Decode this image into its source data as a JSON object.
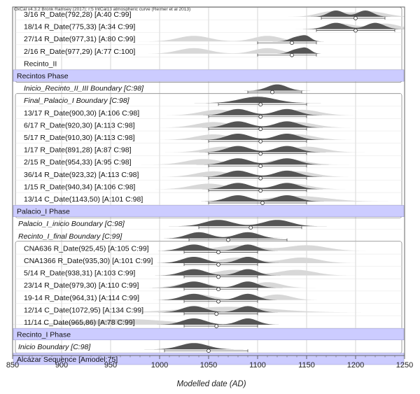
{
  "header": "OxCal v4.3.2 Bronk Ramsey (2017); r:5 IntCal13 atmospheric curve (Reimer et al 2013)",
  "chart_data": {
    "type": "oxcal-multiplot",
    "xlabel": "Modelled date (AD)",
    "xlim": [
      850,
      1250
    ],
    "xticks": [
      850,
      900,
      950,
      1000,
      1050,
      1100,
      1150,
      1200,
      1250
    ],
    "grid": true,
    "rows": [
      {
        "kind": "date",
        "label": "3/16 R_Date(792,28) [A:40 C:99]",
        "style": "normal",
        "prior_modes": [
          [
            1175,
            14
          ],
          [
            1215,
            16
          ]
        ],
        "post_modes": [
          [
            1180,
            8
          ],
          [
            1210,
            8
          ]
        ],
        "mean": 1200,
        "ranges": [
          [
            1165,
            1230
          ]
        ],
        "indent": 1
      },
      {
        "kind": "date",
        "label": "18/14 R_Date(775,33) [A:34 C:99]",
        "style": "normal",
        "prior_modes": [
          [
            1185,
            14
          ],
          [
            1230,
            14
          ]
        ],
        "post_modes": [
          [
            1180,
            10
          ],
          [
            1220,
            9
          ]
        ],
        "mean": 1200,
        "ranges": [
          [
            1160,
            1240
          ]
        ],
        "indent": 1
      },
      {
        "kind": "date",
        "label": "27/14 R_Date(977,31) [A:80 C:99]",
        "style": "normal",
        "prior_modes": [
          [
            1035,
            16
          ],
          [
            1110,
            14
          ]
        ],
        "post_modes": [
          [
            1140,
            7
          ],
          [
            1150,
            5
          ]
        ],
        "mean": 1135,
        "ranges": [
          [
            1100,
            1160
          ]
        ],
        "indent": 1
      },
      {
        "kind": "date",
        "label": "2/16 R_Date(977,29) [A:77 C:100]",
        "style": "normal",
        "prior_modes": [
          [
            1035,
            16
          ],
          [
            1110,
            14
          ]
        ],
        "post_modes": [
          [
            1140,
            7
          ],
          [
            1150,
            5
          ]
        ],
        "mean": 1135,
        "ranges": [
          [
            1100,
            1160
          ]
        ],
        "indent": 1
      },
      {
        "kind": "phase-name",
        "label": "Recinto_II",
        "style": "normal",
        "indent": 1
      },
      {
        "kind": "phase",
        "label": "Recintos Phase"
      },
      {
        "kind": "boundary",
        "label": "Inicio_Recinto_II_III Boundary [C:98]",
        "style": "italic",
        "post_modes": [
          [
            1120,
            10
          ]
        ],
        "mean": 1115,
        "ranges": [
          [
            1090,
            1145
          ]
        ],
        "indent": 1
      },
      {
        "kind": "boundary",
        "label": "Final_Palacio_I Boundary [C:98]",
        "style": "italic",
        "post_modes": [
          [
            1100,
            18
          ]
        ],
        "mean": 1103,
        "ranges": [
          [
            1060,
            1150
          ]
        ],
        "indent": 1
      },
      {
        "kind": "date",
        "label": "13/17 R_Date(900,30) [A:106 C:98]",
        "style": "normal",
        "prior_modes": [
          [
            1060,
            18
          ],
          [
            1145,
            18
          ]
        ],
        "post_modes": [
          [
            1080,
            12
          ],
          [
            1130,
            12
          ]
        ],
        "mean": 1103,
        "ranges": [
          [
            1050,
            1150
          ]
        ],
        "indent": 1
      },
      {
        "kind": "date",
        "label": "6/17 R_Date(920,30) [A:113 C:98]",
        "style": "normal",
        "prior_modes": [
          [
            1055,
            18
          ],
          [
            1140,
            18
          ]
        ],
        "post_modes": [
          [
            1080,
            12
          ],
          [
            1130,
            12
          ]
        ],
        "mean": 1103,
        "ranges": [
          [
            1050,
            1150
          ]
        ],
        "indent": 1
      },
      {
        "kind": "date",
        "label": "5/17 R_Date(910,30) [A:113 C:98]",
        "style": "normal",
        "prior_modes": [
          [
            1055,
            18
          ],
          [
            1140,
            18
          ]
        ],
        "post_modes": [
          [
            1080,
            12
          ],
          [
            1130,
            12
          ]
        ],
        "mean": 1103,
        "ranges": [
          [
            1050,
            1150
          ]
        ],
        "indent": 1
      },
      {
        "kind": "date",
        "label": "1/17 R_Date(891,28) [A:87 C:98]",
        "style": "normal",
        "prior_modes": [
          [
            1065,
            18
          ],
          [
            1150,
            18
          ]
        ],
        "post_modes": [
          [
            1080,
            12
          ],
          [
            1130,
            12
          ]
        ],
        "mean": 1103,
        "ranges": [
          [
            1050,
            1150
          ]
        ],
        "indent": 1
      },
      {
        "kind": "date",
        "label": "2/15 R_Date(954,33) [A:95 C:98]",
        "style": "normal",
        "prior_modes": [
          [
            1045,
            18
          ],
          [
            1130,
            18
          ]
        ],
        "post_modes": [
          [
            1080,
            12
          ],
          [
            1130,
            12
          ]
        ],
        "mean": 1103,
        "ranges": [
          [
            1050,
            1150
          ]
        ],
        "indent": 1
      },
      {
        "kind": "date",
        "label": "36/14 R_Date(923,32) [A:113 C:98]",
        "style": "normal",
        "prior_modes": [
          [
            1055,
            18
          ],
          [
            1140,
            18
          ]
        ],
        "post_modes": [
          [
            1080,
            12
          ],
          [
            1130,
            12
          ]
        ],
        "mean": 1103,
        "ranges": [
          [
            1050,
            1150
          ]
        ],
        "indent": 1
      },
      {
        "kind": "date",
        "label": "1/15 R_Date(940,34) [A:106 C:98]",
        "style": "normal",
        "prior_modes": [
          [
            1050,
            18
          ],
          [
            1135,
            18
          ]
        ],
        "post_modes": [
          [
            1080,
            12
          ],
          [
            1130,
            12
          ]
        ],
        "mean": 1103,
        "ranges": [
          [
            1050,
            1150
          ]
        ],
        "indent": 1
      },
      {
        "kind": "date",
        "label": "13/14 C_Date(1143,50) [A:101 C:98]",
        "style": "normal",
        "prior_modes": [
          [
            1140,
            30
          ]
        ],
        "post_modes": [
          [
            1080,
            12
          ],
          [
            1130,
            12
          ]
        ],
        "mean": 1105,
        "ranges": [
          [
            1050,
            1150
          ]
        ],
        "indent": 1
      },
      {
        "kind": "phase",
        "label": "Palacio_I Phase"
      },
      {
        "kind": "boundary",
        "label": "Palacio_I_inicio Boundary [C:98]",
        "style": "italic",
        "post_modes": [
          [
            1060,
            14
          ],
          [
            1120,
            14
          ]
        ],
        "mean": 1093,
        "ranges": [
          [
            1040,
            1145
          ]
        ],
        "indent": 0
      },
      {
        "kind": "boundary",
        "label": "Recinto_I_final Boundary [C:99]",
        "style": "italic",
        "post_modes": [
          [
            1040,
            12
          ],
          [
            1090,
            12
          ]
        ],
        "mean": 1070,
        "ranges": [
          [
            1030,
            1130
          ]
        ],
        "indent": 0
      },
      {
        "kind": "date",
        "label": "CNA636 R_Date(925,45) [A:105 C:99]",
        "style": "normal",
        "prior_modes": [
          [
            1080,
            22
          ],
          [
            1150,
            20
          ]
        ],
        "post_modes": [
          [
            1035,
            12
          ],
          [
            1090,
            10
          ]
        ],
        "mean": 1060,
        "ranges": [
          [
            1025,
            1100
          ]
        ],
        "indent": 1
      },
      {
        "kind": "date",
        "label": "CNA1366 R_Date(935,30) [A:101 C:99]",
        "style": "normal",
        "prior_modes": [
          [
            1080,
            18
          ],
          [
            1145,
            18
          ]
        ],
        "post_modes": [
          [
            1035,
            12
          ],
          [
            1090,
            10
          ]
        ],
        "mean": 1060,
        "ranges": [
          [
            1025,
            1100
          ]
        ],
        "indent": 1
      },
      {
        "kind": "date",
        "label": "5/14 R_Date(938,31) [A:103 C:99]",
        "style": "normal",
        "prior_modes": [
          [
            1075,
            18
          ],
          [
            1140,
            18
          ]
        ],
        "post_modes": [
          [
            1035,
            12
          ],
          [
            1090,
            10
          ]
        ],
        "mean": 1060,
        "ranges": [
          [
            1025,
            1100
          ]
        ],
        "indent": 1
      },
      {
        "kind": "date",
        "label": "23/14 R_Date(979,30) [A:110 C:99]",
        "style": "normal",
        "prior_modes": [
          [
            1035,
            16
          ],
          [
            1110,
            14
          ]
        ],
        "post_modes": [
          [
            1035,
            12
          ],
          [
            1090,
            10
          ]
        ],
        "mean": 1060,
        "ranges": [
          [
            1025,
            1100
          ]
        ],
        "indent": 1
      },
      {
        "kind": "date",
        "label": "19-14 R_Date(964,31) [A:114 C:99]",
        "style": "normal",
        "prior_modes": [
          [
            1040,
            16
          ],
          [
            1120,
            14
          ]
        ],
        "post_modes": [
          [
            1035,
            12
          ],
          [
            1090,
            10
          ]
        ],
        "mean": 1060,
        "ranges": [
          [
            1025,
            1100
          ]
        ],
        "indent": 1
      },
      {
        "kind": "date",
        "label": "12/14 C_Date(1072,95) [A:134 C:99]",
        "style": "normal",
        "prior_modes": [
          [
            1070,
            45
          ]
        ],
        "post_modes": [
          [
            1035,
            12
          ],
          [
            1090,
            10
          ]
        ],
        "mean": 1058,
        "ranges": [
          [
            1025,
            1100
          ]
        ],
        "indent": 1
      },
      {
        "kind": "date",
        "label": "11/14 C_Date(965,86) [A:78 C:99]",
        "style": "normal",
        "prior_modes": [
          [
            965,
            45
          ]
        ],
        "post_modes": [
          [
            1035,
            12
          ],
          [
            1090,
            10
          ]
        ],
        "mean": 1058,
        "ranges": [
          [
            1025,
            1100
          ]
        ],
        "indent": 1
      },
      {
        "kind": "phase",
        "label": "Recinto_I Phase"
      },
      {
        "kind": "boundary",
        "label": "Inicio Boundary [C:98]",
        "style": "italic",
        "post_modes": [
          [
            1035,
            14
          ]
        ],
        "mean": 1050,
        "ranges": [
          [
            1005,
            1090
          ]
        ],
        "indent": 0
      },
      {
        "kind": "phase",
        "label": "Alcázar Sequence [Amodel:75]"
      }
    ],
    "groups": [
      {
        "name": "recintos",
        "from": 0,
        "to": 5
      },
      {
        "name": "palacio",
        "from": 7,
        "to": 16
      },
      {
        "name": "recinto_i",
        "from": 19,
        "to": 27
      }
    ],
    "colors": {
      "phase_fill": "#ccccff",
      "posterior": "#555555",
      "prior": "#d8d8d8",
      "grid": "#bbbbbb",
      "frame": "#666666"
    }
  }
}
